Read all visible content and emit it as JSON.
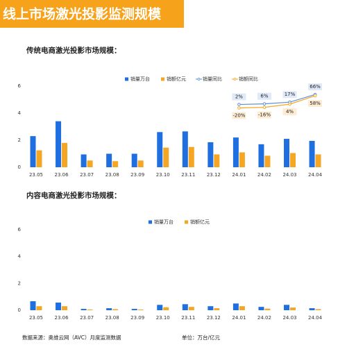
{
  "title": "线上市场激光投影监测规模",
  "source": "数据来源：奥维云网（AVC）月度监测数据",
  "unit": "单位：万台/亿元",
  "chart_data": [
    {
      "type": "bar",
      "title": "传统电商激光投影市场规模：",
      "categories": [
        "23.05",
        "23.06",
        "23.07",
        "23.08",
        "23.09",
        "23.10",
        "23.11",
        "23.12",
        "24.01",
        "24.02",
        "24.03",
        "24.04"
      ],
      "ylim": [
        0,
        6
      ],
      "yticks": [
        0,
        2,
        4,
        6
      ],
      "y2lim": [
        -400,
        120
      ],
      "series": [
        {
          "name": "销量万台",
          "type": "bar",
          "color": "#1f6fe0",
          "values": [
            2.3,
            3.4,
            0.95,
            1.0,
            1.0,
            2.6,
            2.65,
            1.85,
            2.2,
            1.7,
            2.1,
            1.95
          ]
        },
        {
          "name": "销额亿元",
          "type": "bar",
          "color": "#f5a623",
          "values": [
            1.25,
            1.8,
            0.5,
            0.45,
            0.5,
            1.45,
            1.5,
            0.95,
            1.1,
            0.85,
            1.05,
            0.95
          ]
        },
        {
          "name": "销量同比",
          "type": "line",
          "axis": "y2",
          "color": "#5b8fd9",
          "values": [
            null,
            null,
            null,
            null,
            null,
            null,
            null,
            null,
            2,
            6,
            17,
            66
          ],
          "value_labels": [
            null,
            null,
            null,
            null,
            null,
            null,
            null,
            null,
            "2%",
            "6%",
            "17%",
            "66%"
          ]
        },
        {
          "name": "销额同比",
          "type": "line",
          "axis": "y2",
          "color": "#f5a623",
          "values": [
            null,
            null,
            null,
            null,
            null,
            null,
            null,
            null,
            -20,
            -16,
            4,
            58
          ],
          "value_labels": [
            null,
            null,
            null,
            null,
            null,
            null,
            null,
            null,
            "-20%",
            "-16%",
            "4%",
            "58%"
          ]
        }
      ]
    },
    {
      "type": "bar",
      "title": "内容电商激光投影市场规模：",
      "categories": [
        "23.05",
        "23.06",
        "23.07",
        "23.08",
        "23.09",
        "23.10",
        "23.11",
        "23.12",
        "24.01",
        "24.02",
        "24.03",
        "24.04"
      ],
      "ylim": [
        0,
        6
      ],
      "yticks": [
        0,
        2,
        4,
        6
      ],
      "series": [
        {
          "name": "销量万台",
          "type": "bar",
          "color": "#1f6fe0",
          "values": [
            0.67,
            0.57,
            0.1,
            0.15,
            0.1,
            0.4,
            0.45,
            0.3,
            0.5,
            0.25,
            0.4,
            0.15
          ]
        },
        {
          "name": "销额亿元",
          "type": "bar",
          "color": "#f5a623",
          "values": [
            0.3,
            0.3,
            0.05,
            0.08,
            0.05,
            0.22,
            0.25,
            0.15,
            0.3,
            0.12,
            0.2,
            0.08
          ]
        }
      ]
    }
  ]
}
